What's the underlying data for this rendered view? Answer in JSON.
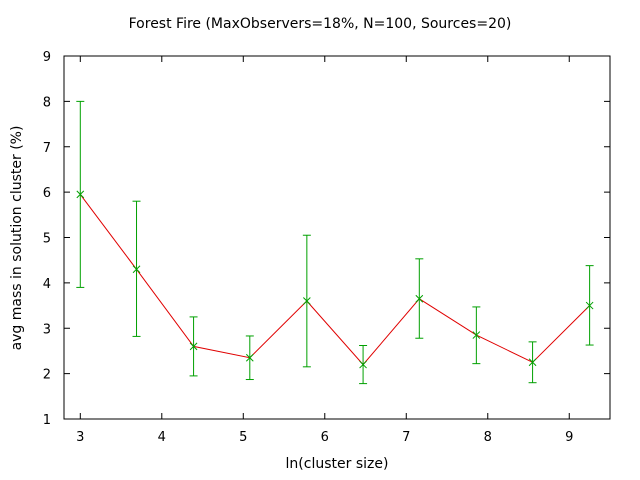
{
  "chart_data": {
    "type": "line",
    "title": "Forest Fire (MaxObservers=18%, N=100, Sources=20)",
    "xlabel": "ln(cluster size)",
    "ylabel": "avg mass in solution cluster (%)",
    "xlim": [
      2.8,
      9.5
    ],
    "ylim": [
      1,
      9
    ],
    "xticks": [
      3,
      4,
      5,
      6,
      7,
      8,
      9
    ],
    "yticks": [
      1,
      2,
      3,
      4,
      5,
      6,
      7,
      8,
      9
    ],
    "grid": false,
    "line_color": "#e00000",
    "errorbar_color": "#00a000",
    "series": [
      {
        "x": [
          3.0,
          3.69,
          4.39,
          5.08,
          5.78,
          6.47,
          7.16,
          7.86,
          8.55,
          9.25
        ],
        "y": [
          5.95,
          4.3,
          2.6,
          2.35,
          3.6,
          2.2,
          3.65,
          2.85,
          2.25,
          3.5
        ],
        "ymin": [
          3.9,
          2.82,
          1.95,
          1.87,
          2.15,
          1.78,
          2.78,
          2.22,
          1.8,
          2.63
        ],
        "ymax": [
          8.0,
          5.8,
          3.25,
          2.83,
          5.05,
          2.62,
          4.53,
          3.47,
          2.7,
          4.38
        ]
      }
    ]
  }
}
